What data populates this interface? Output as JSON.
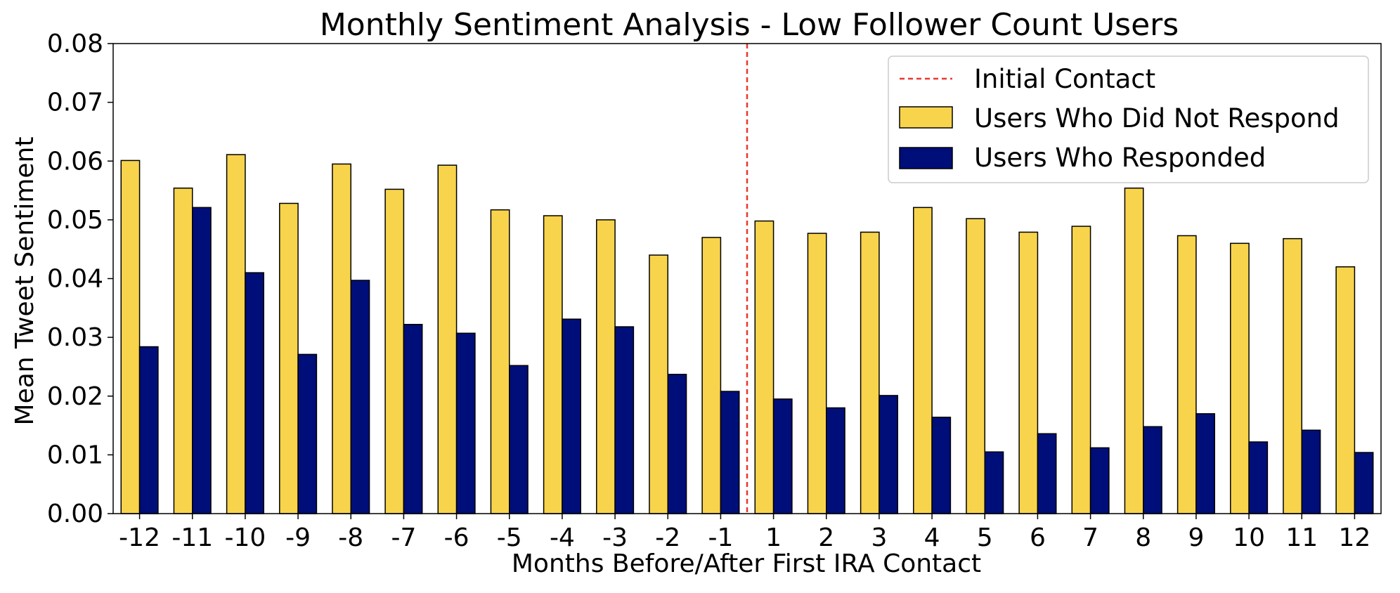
{
  "chart_data": {
    "type": "bar",
    "title": "Monthly Sentiment Analysis - Low Follower Count Users",
    "xlabel": "Months Before/After First IRA Contact",
    "ylabel": "Mean Tweet Sentiment",
    "ylim": [
      0,
      0.08
    ],
    "yticks": [
      "0.00",
      "0.01",
      "0.02",
      "0.03",
      "0.04",
      "0.05",
      "0.06",
      "0.07",
      "0.08"
    ],
    "categories": [
      "-12",
      "-11",
      "-10",
      "-9",
      "-8",
      "-7",
      "-6",
      "-5",
      "-4",
      "-3",
      "-2",
      "-1",
      "1",
      "2",
      "3",
      "4",
      "5",
      "6",
      "7",
      "8",
      "9",
      "10",
      "11",
      "12"
    ],
    "series": [
      {
        "name": "Users Who Did Not Respond",
        "color": "#f8d44c",
        "values": [
          0.0601,
          0.0554,
          0.0611,
          0.0528,
          0.0595,
          0.0552,
          0.0593,
          0.0517,
          0.0507,
          0.05,
          0.044,
          0.047,
          0.0498,
          0.0477,
          0.0479,
          0.0521,
          0.0502,
          0.0479,
          0.0489,
          0.0554,
          0.0473,
          0.046,
          0.0468,
          0.042
        ]
      },
      {
        "name": "Users Who Responded",
        "color": "#000e7a",
        "values": [
          0.0284,
          0.0521,
          0.041,
          0.0271,
          0.0397,
          0.0322,
          0.0307,
          0.0252,
          0.0331,
          0.0318,
          0.0237,
          0.0208,
          0.0195,
          0.018,
          0.0201,
          0.0164,
          0.0105,
          0.0136,
          0.0112,
          0.0148,
          0.017,
          0.0122,
          0.0142,
          0.0104
        ]
      }
    ],
    "reference_line": {
      "label": "Initial Contact",
      "position": "between -1 and 1",
      "color": "#e8382e",
      "style": "dashed"
    },
    "legend": {
      "placement": "top-right",
      "entries": [
        "Initial Contact",
        "Users Who Did Not Respond",
        "Users Who Responded"
      ]
    }
  }
}
